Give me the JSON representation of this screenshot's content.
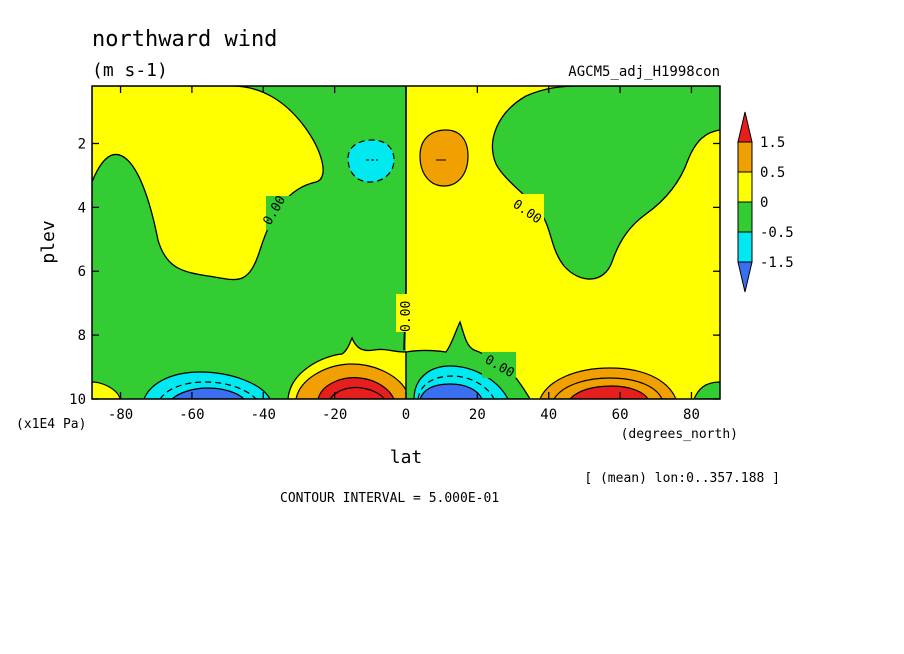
{
  "chart_data": {
    "type": "heatmap",
    "title": "northward wind",
    "units": "(m s-1)",
    "dataset": "AGCM5_adj_H1998con",
    "xlabel": "lat",
    "x_units": "(degrees_north)",
    "ylabel": "plev",
    "y_units": "(x1E4 Pa)",
    "xlim": [
      -88,
      88
    ],
    "ylim": [
      10,
      0.2
    ],
    "x_ticks": [
      -80,
      -60,
      -40,
      -20,
      0,
      20,
      40,
      60,
      80
    ],
    "x_tick_labels": [
      "-80",
      "-60",
      "-40",
      "-20",
      "0",
      "20",
      "40",
      "60",
      "80"
    ],
    "y_ticks": [
      2,
      4,
      6,
      8,
      10
    ],
    "y_tick_labels": [
      "2",
      "4",
      "6",
      "8",
      "10"
    ],
    "contour_interval": "CONTOUR INTERVAL = 5.000E-01",
    "mean_note": "[ (mean) lon:0..357.188 ]",
    "contour_labels": [
      "0.00",
      "0.00",
      "0.00",
      "0.00"
    ],
    "colorbar": {
      "labels": [
        "1.5",
        "0.5",
        "0",
        "-0.5",
        "-1.5"
      ],
      "bins": [
        {
          "range": [
            -2.5,
            -1.5
          ],
          "color": "#3a6fef"
        },
        {
          "range": [
            -1.5,
            -0.5
          ],
          "color": "#00e8f0"
        },
        {
          "range": [
            -0.5,
            0
          ],
          "color": "#33cc33"
        },
        {
          "range": [
            0,
            0.5
          ],
          "color": "#ffff00"
        },
        {
          "range": [
            0.5,
            1.5
          ],
          "color": "#f0a000"
        },
        {
          "range": [
            1.5,
            2.5
          ],
          "color": "#e61e1e"
        }
      ]
    }
  }
}
